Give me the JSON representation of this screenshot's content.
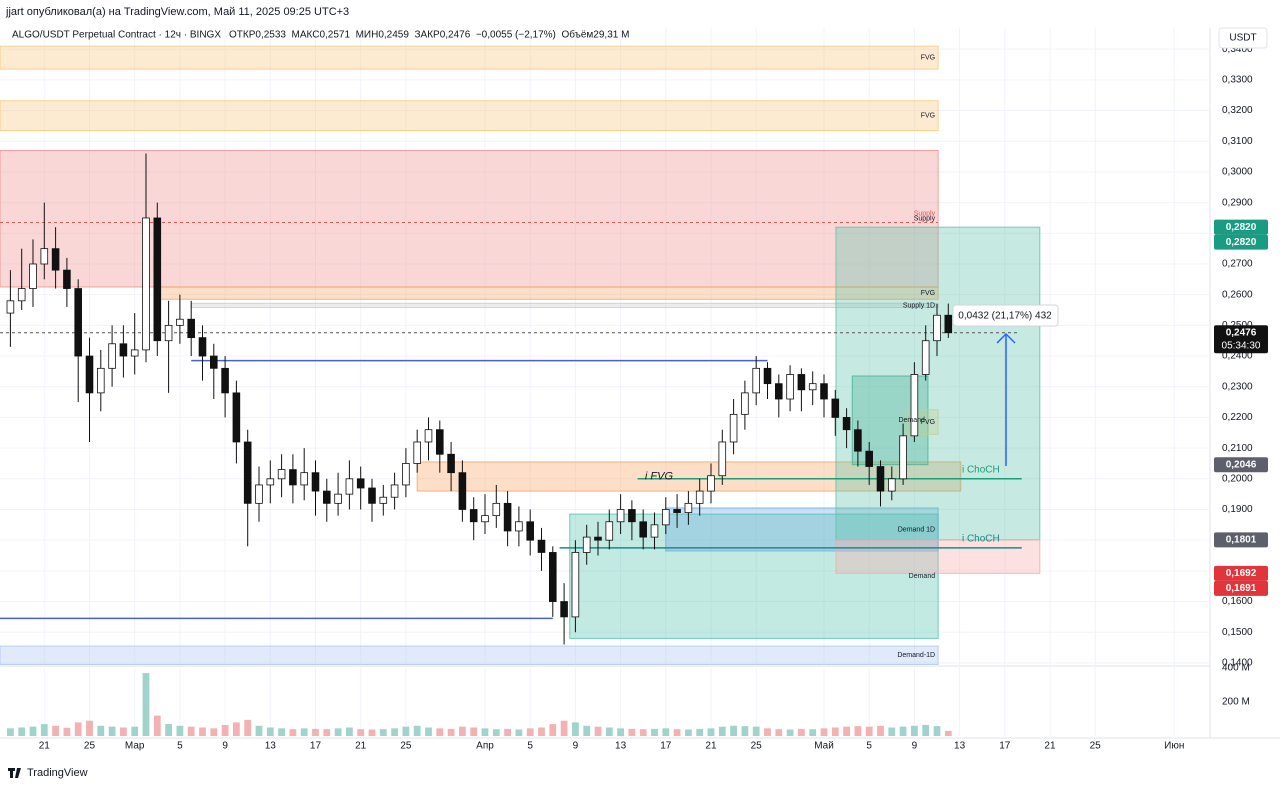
{
  "header": {
    "author_line": "jjart опубликовал(а) на TradingView.com, Май 11, 2025 09:25 UTC+3",
    "brand": "TradingView"
  },
  "chart_data": {
    "type": "candlestick",
    "title": "ALGO/USDT Perpetual Contract · 12ч · BINGX",
    "ohlc_legend": "ОТКР0,2533  МАКС0,2571  МИН0,2459  ЗАКР0,2476  −0,0055 (−2,17%)  Объём29,31 M",
    "currency": "USDT",
    "x": [
      18,
      19,
      20,
      21,
      22,
      23,
      24,
      25,
      26,
      27,
      28,
      29,
      30,
      31,
      32,
      33,
      34,
      35,
      36,
      37,
      38,
      39,
      40,
      41,
      42,
      43,
      44,
      45,
      46,
      47,
      48,
      49,
      50,
      51,
      52,
      53,
      54,
      55,
      56,
      57,
      58,
      59,
      60,
      61,
      62,
      63,
      64,
      65,
      66,
      67,
      68,
      69,
      70,
      71,
      72,
      73,
      74,
      75,
      76,
      77,
      78,
      79,
      80,
      81,
      82,
      83,
      84,
      85,
      86,
      87,
      88,
      89,
      90,
      91,
      92,
      93,
      94,
      95,
      96,
      97,
      98,
      99,
      100,
      101
    ],
    "open": [
      0.254,
      0.258,
      0.262,
      0.27,
      0.275,
      0.268,
      0.262,
      0.24,
      0.228,
      0.236,
      0.244,
      0.24,
      0.242,
      0.285,
      0.245,
      0.25,
      0.252,
      0.246,
      0.24,
      0.236,
      0.228,
      0.212,
      0.192,
      0.198,
      0.2,
      0.203,
      0.198,
      0.202,
      0.196,
      0.192,
      0.195,
      0.2,
      0.197,
      0.192,
      0.194,
      0.198,
      0.205,
      0.212,
      0.216,
      0.208,
      0.202,
      0.19,
      0.186,
      0.188,
      0.192,
      0.183,
      0.186,
      0.18,
      0.176,
      0.16,
      0.155,
      0.176,
      0.181,
      0.18,
      0.186,
      0.19,
      0.186,
      0.181,
      0.185,
      0.19,
      0.189,
      0.192,
      0.196,
      0.201,
      0.212,
      0.221,
      0.228,
      0.236,
      0.231,
      0.226,
      0.234,
      0.229,
      0.231,
      0.226,
      0.22,
      0.216,
      0.209,
      0.204,
      0.196,
      0.2,
      0.214,
      0.234,
      0.245,
      0.2533
    ],
    "high": [
      0.268,
      0.275,
      0.278,
      0.29,
      0.282,
      0.272,
      0.265,
      0.246,
      0.242,
      0.25,
      0.25,
      0.254,
      0.306,
      0.29,
      0.258,
      0.26,
      0.258,
      0.25,
      0.244,
      0.24,
      0.232,
      0.216,
      0.204,
      0.206,
      0.208,
      0.208,
      0.21,
      0.206,
      0.2,
      0.202,
      0.206,
      0.204,
      0.2,
      0.198,
      0.202,
      0.21,
      0.216,
      0.22,
      0.219,
      0.212,
      0.206,
      0.194,
      0.195,
      0.198,
      0.196,
      0.191,
      0.19,
      0.184,
      0.178,
      0.166,
      0.18,
      0.185,
      0.186,
      0.19,
      0.195,
      0.193,
      0.19,
      0.189,
      0.194,
      0.195,
      0.196,
      0.2,
      0.205,
      0.216,
      0.226,
      0.232,
      0.24,
      0.238,
      0.234,
      0.237,
      0.236,
      0.235,
      0.234,
      0.229,
      0.223,
      0.219,
      0.212,
      0.206,
      0.204,
      0.218,
      0.238,
      0.25,
      0.257,
      0.2571
    ],
    "low": [
      0.243,
      0.255,
      0.256,
      0.265,
      0.262,
      0.256,
      0.225,
      0.212,
      0.222,
      0.23,
      0.233,
      0.234,
      0.238,
      0.24,
      0.228,
      0.244,
      0.24,
      0.232,
      0.226,
      0.22,
      0.205,
      0.178,
      0.186,
      0.192,
      0.194,
      0.192,
      0.193,
      0.188,
      0.186,
      0.188,
      0.19,
      0.19,
      0.186,
      0.188,
      0.19,
      0.194,
      0.202,
      0.206,
      0.202,
      0.196,
      0.186,
      0.18,
      0.182,
      0.184,
      0.178,
      0.178,
      0.175,
      0.17,
      0.155,
      0.146,
      0.15,
      0.172,
      0.175,
      0.177,
      0.182,
      0.18,
      0.177,
      0.177,
      0.182,
      0.184,
      0.185,
      0.188,
      0.192,
      0.198,
      0.208,
      0.216,
      0.224,
      0.226,
      0.22,
      0.222,
      0.222,
      0.224,
      0.22,
      0.214,
      0.21,
      0.204,
      0.198,
      0.191,
      0.193,
      0.198,
      0.212,
      0.232,
      0.24,
      0.2459
    ],
    "close": [
      0.258,
      0.262,
      0.27,
      0.275,
      0.268,
      0.262,
      0.24,
      0.228,
      0.236,
      0.244,
      0.24,
      0.242,
      0.285,
      0.245,
      0.25,
      0.252,
      0.246,
      0.24,
      0.236,
      0.228,
      0.212,
      0.192,
      0.198,
      0.2,
      0.203,
      0.198,
      0.202,
      0.196,
      0.192,
      0.195,
      0.2,
      0.197,
      0.192,
      0.194,
      0.198,
      0.205,
      0.212,
      0.216,
      0.208,
      0.202,
      0.19,
      0.186,
      0.188,
      0.192,
      0.183,
      0.186,
      0.18,
      0.176,
      0.16,
      0.155,
      0.176,
      0.181,
      0.18,
      0.186,
      0.19,
      0.186,
      0.181,
      0.185,
      0.19,
      0.189,
      0.192,
      0.196,
      0.201,
      0.212,
      0.221,
      0.228,
      0.236,
      0.231,
      0.226,
      0.234,
      0.229,
      0.231,
      0.226,
      0.22,
      0.216,
      0.209,
      0.204,
      0.196,
      0.2,
      0.214,
      0.234,
      0.245,
      0.2533,
      0.2476
    ],
    "volume": [
      45,
      50,
      55,
      70,
      60,
      48,
      80,
      90,
      60,
      55,
      50,
      55,
      370,
      120,
      70,
      60,
      55,
      50,
      45,
      65,
      80,
      95,
      60,
      50,
      45,
      40,
      45,
      42,
      40,
      45,
      50,
      40,
      38,
      40,
      45,
      55,
      60,
      50,
      45,
      42,
      55,
      50,
      45,
      40,
      42,
      38,
      45,
      50,
      70,
      90,
      80,
      60,
      55,
      50,
      45,
      42,
      40,
      42,
      45,
      40,
      38,
      42,
      45,
      55,
      60,
      58,
      55,
      45,
      40,
      38,
      42,
      40,
      45,
      50,
      55,
      58,
      55,
      60,
      50,
      55,
      60,
      65,
      58,
      30
    ],
    "up_color": "#ffffff",
    "down_color": "#111111",
    "volume_up_color": "#9fd3cb",
    "volume_down_color": "#f3b1b1",
    "xlim": [
      17.08,
      124.16
    ],
    "xticks": [
      21,
      25,
      {
        "value": 29,
        "label": "Мар"
      },
      {
        "value": 33,
        "label": "5"
      },
      {
        "value": 37,
        "label": "9"
      },
      {
        "value": 41,
        "label": "13"
      },
      {
        "value": 45,
        "label": "17"
      },
      {
        "value": 49,
        "label": "21"
      },
      {
        "value": 53,
        "label": "25"
      },
      {
        "value": 60,
        "label": "Апр"
      },
      {
        "value": 64,
        "label": "5"
      },
      {
        "value": 68,
        "label": "9"
      },
      {
        "value": 72,
        "label": "13"
      },
      {
        "value": 76,
        "label": "17"
      },
      {
        "value": 80,
        "label": "21"
      },
      {
        "value": 84,
        "label": "25"
      },
      {
        "value": 90,
        "label": "Май"
      },
      {
        "value": 94,
        "label": "5"
      },
      {
        "value": 98,
        "label": "9"
      },
      {
        "value": 102,
        "label": "13"
      },
      {
        "value": 106,
        "label": "17"
      },
      {
        "value": 110,
        "label": "21"
      },
      {
        "value": 114,
        "label": "25"
      },
      {
        "value": 121,
        "label": "Июн"
      }
    ],
    "ylim": [
      0.139,
      0.3469
    ],
    "yticks": [
      {
        "value": 0.34,
        "label": "0,3400"
      },
      {
        "value": 0.33,
        "label": "0,3300"
      },
      {
        "value": 0.32,
        "label": "0,3200"
      },
      {
        "value": 0.31,
        "label": "0,3100"
      },
      {
        "value": 0.3,
        "label": "0,3000"
      },
      {
        "value": 0.29,
        "label": "0,2900"
      },
      {
        "value": 0.28,
        "label": "0,2800"
      },
      {
        "value": 0.27,
        "label": "0,2700"
      },
      {
        "value": 0.26,
        "label": "0,2600"
      },
      {
        "value": 0.25,
        "label": "0,2500"
      },
      {
        "value": 0.24,
        "label": "0,2400"
      },
      {
        "value": 0.23,
        "label": "0,2300"
      },
      {
        "value": 0.22,
        "label": "0,2200"
      },
      {
        "value": 0.21,
        "label": "0,2100"
      },
      {
        "value": 0.2,
        "label": "0,2000"
      },
      {
        "value": 0.19,
        "label": "0,1900"
      },
      {
        "value": 0.18,
        "label": "0,1800"
      },
      {
        "value": 0.17,
        "label": "0,1700"
      },
      {
        "value": 0.16,
        "label": "0,1600"
      },
      {
        "value": 0.15,
        "label": "0,1500"
      },
      {
        "value": 0.14,
        "label": "0,1400"
      }
    ],
    "vlim": [
      0,
      400
    ],
    "vticks": [
      {
        "value": 400,
        "label": "400 M"
      },
      {
        "value": 200,
        "label": "200 M"
      }
    ],
    "grid": true,
    "zones": [
      {
        "label": "FVG",
        "y": [
          0.341,
          0.3335
        ],
        "x": [
          17.08,
          100.1
        ],
        "color": "#f8c77a"
      },
      {
        "label": "FVG",
        "y": [
          0.3232,
          0.3135
        ],
        "x": [
          17.08,
          100.1
        ],
        "color": "#f8c77a"
      },
      {
        "label": "Supply",
        "y": [
          0.307,
          0.2625
        ],
        "x": [
          17.08,
          100.1
        ],
        "color": "#f28b8b"
      },
      {
        "label": "FVG",
        "y": [
          0.2625,
          0.2585
        ],
        "x": [
          31,
          100.1
        ],
        "color": "#f5a35c"
      },
      {
        "label": "Supply 1D",
        "y": [
          0.2572,
          0.2558
        ],
        "x": [
          34,
          100.1
        ],
        "color": "#c9c9c9"
      },
      {
        "label": "Demand",
        "y": [
          0.1885,
          0.148
        ],
        "x": [
          67.5,
          100.1
        ],
        "color": "#4fc4ab"
      },
      {
        "label": "Demand-1D",
        "y": [
          0.1455,
          0.1395
        ],
        "x": [
          17.08,
          100.1
        ],
        "color": "#a9c4f2"
      },
      {
        "label": "i FVG",
        "y": [
          0.2055,
          0.196
        ],
        "x": [
          54,
          102.1
        ],
        "color": "#f5a35c"
      },
      {
        "label": "Demand 1D",
        "y": [
          0.1905,
          0.1765
        ],
        "x": [
          76,
          100.1
        ],
        "color": "#6aa9e0"
      },
      {
        "label": "Demand",
        "y": [
          0.2335,
          0.2046
        ],
        "x": [
          92.5,
          99.2
        ],
        "color": "#3aa88c"
      },
      {
        "label": "FVG",
        "y": [
          0.2225,
          0.2145
        ],
        "x": [
          97.2,
          100.1
        ],
        "color": "#f6d58a"
      },
      {
        "y": [
          0.282,
          0.1801
        ],
        "x": [
          91.06,
          109.1
        ],
        "color": "#5bc2a8"
      },
      {
        "y": [
          0.1801,
          0.1692
        ],
        "x": [
          91.06,
          109.1
        ],
        "color": "#f5a9a9"
      }
    ],
    "lines": [
      {
        "label": "Supply",
        "y": 0.2835,
        "x": [
          17.08,
          100.1
        ],
        "color": "#e05b5b",
        "dash": true
      },
      {
        "label": "i ChoCH",
        "y": 0.2,
        "x": [
          73.5,
          107.5
        ],
        "color": "#1b9e77",
        "dash": false
      },
      {
        "label": "i ChoCH",
        "y": 0.1775,
        "x": [
          66.6,
          107.5
        ],
        "color": "#1b8a8a",
        "dash": false
      },
      {
        "y": 0.1545,
        "x": [
          17.08,
          66
        ],
        "color": "#4b5fd1",
        "dash": false
      },
      {
        "y": 0.2385,
        "x": [
          34,
          85
        ],
        "color": "#4b5fd1",
        "dash": false
      },
      {
        "y": 0.2476,
        "x": [
          17.08,
          107.1
        ],
        "color": "#555555",
        "dash": true
      }
    ],
    "position_info": "0,0432 (21,17%) 432",
    "price_labels": [
      {
        "value": 0.282,
        "label": "0,2820",
        "color": "#1a9c82"
      },
      {
        "value": 0.282,
        "label": "0,2820",
        "color": "#1a9c82"
      },
      {
        "value": 0.2476,
        "label": "0,2476",
        "sub": "05:34:30",
        "color": "#111111"
      },
      {
        "value": 0.2046,
        "label": "0,2046",
        "color": "#5d606b"
      },
      {
        "value": 0.1801,
        "label": "0,1801",
        "color": "#5d606b"
      },
      {
        "value": 0.1692,
        "label": "0,1692",
        "color": "#e0353b"
      },
      {
        "value": 0.1691,
        "label": "0,1691",
        "color": "#e0353b"
      }
    ]
  }
}
